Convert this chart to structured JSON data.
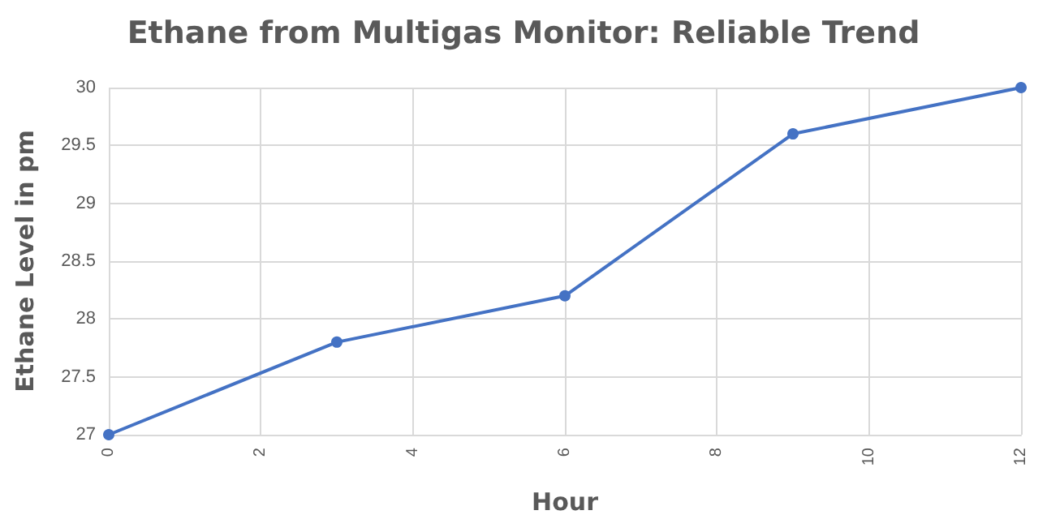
{
  "chart_data": {
    "type": "line",
    "title": "Ethane from Multigas Monitor: Reliable Trend",
    "xlabel": "Hour",
    "ylabel": "Ethane Level in pm",
    "x": [
      0,
      3,
      6,
      9,
      12
    ],
    "series": [
      {
        "color": "#4472c4",
        "values": [
          27,
          27.8,
          28.2,
          29.6,
          30
        ]
      }
    ],
    "xlim": [
      0,
      12
    ],
    "xticks": [
      0,
      2,
      4,
      6,
      8,
      10,
      12
    ],
    "ylim": [
      27,
      30
    ],
    "yticks": [
      27,
      27.5,
      28,
      28.5,
      29,
      29.5,
      30
    ],
    "grid": true,
    "marker": "circle",
    "line_style": "solid"
  }
}
